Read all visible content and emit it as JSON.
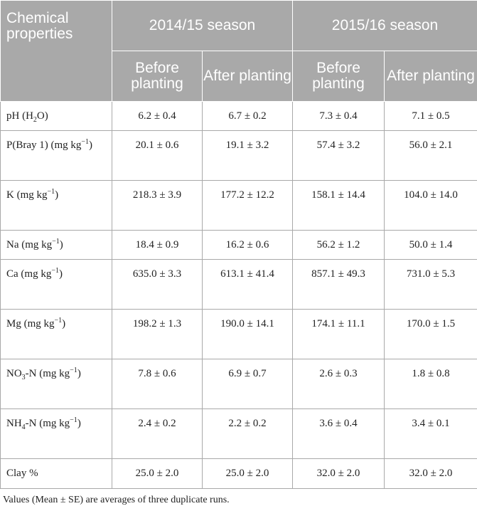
{
  "header": {
    "row_label": "Chemical properties",
    "season1": "2014/15 season",
    "season2": "2015/16 season",
    "before": "Before planting",
    "after": "After planting"
  },
  "rows": [
    {
      "label_main": "pH (H",
      "label_sub": "2",
      "label_tail": "O)",
      "values": [
        "6.2 ± 0.4",
        "6.7 ± 0.2",
        "7.3 ± 0.4",
        "7.1 ± 0.5"
      ]
    },
    {
      "label_main": "P(Bray 1) (mg kg",
      "label_sup": "−1",
      "label_tail": ")",
      "values": [
        "20.1 ± 0.6",
        "19.1 ± 3.2",
        "57.4 ± 3.2",
        "56.0 ± 2.1"
      ]
    },
    {
      "label_main": "K (mg kg",
      "label_sup": "−1",
      "label_tail": ")",
      "values": [
        "218.3 ± 3.9",
        "177.2 ± 12.2",
        "158.1 ± 14.4",
        "104.0 ± 14.0"
      ]
    },
    {
      "label_main": "Na (mg kg",
      "label_sup": "−1",
      "label_tail": ")",
      "values": [
        "18.4 ± 0.9",
        "16.2 ± 0.6",
        "56.2 ± 1.2",
        "50.0 ± 1.4"
      ]
    },
    {
      "label_main": "Ca (mg kg",
      "label_sup": "−1",
      "label_tail": ")",
      "values": [
        "635.0 ± 3.3",
        "613.1 ± 41.4",
        "857.1 ± 49.3",
        "731.0 ± 5.3"
      ]
    },
    {
      "label_main": "Mg (mg kg",
      "label_sup": "−1",
      "label_tail": ")",
      "values": [
        "198.2 ± 1.3",
        "190.0 ± 14.1",
        "174.1 ± 11.1",
        "170.0 ± 1.5"
      ]
    },
    {
      "label_main": "NO",
      "label_sub": "3",
      "label_mid": "-N (mg kg",
      "label_sup": "−1",
      "label_tail": ")",
      "values": [
        "7.8 ± 0.6",
        "6.9 ± 0.7",
        "2.6 ± 0.3",
        "1.8 ± 0.8"
      ]
    },
    {
      "label_main": "NH",
      "label_sub": "4",
      "label_mid": "-N (mg kg",
      "label_sup": "−1",
      "label_tail": ")",
      "values": [
        "2.4 ± 0.2",
        "2.2 ± 0.2",
        "3.6 ± 0.4",
        "3.4 ± 0.1"
      ]
    },
    {
      "label_main": "Clay %",
      "values": [
        "25.0 ± 2.0",
        "25.0 ± 2.0",
        "32.0 ± 2.0",
        "32.0 ± 2.0"
      ]
    }
  ],
  "footnote": "Values (Mean ± SE) are averages of three duplicate runs."
}
